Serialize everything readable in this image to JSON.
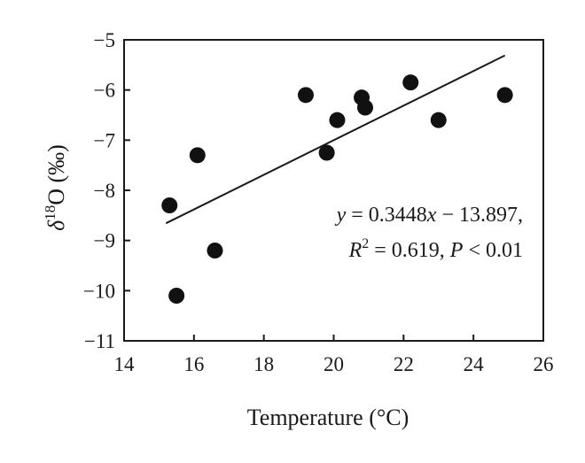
{
  "chart_data": {
    "type": "scatter",
    "xlabel": "Temperature (°C)",
    "ylabel_symbol": "δ",
    "ylabel_superscript": "18",
    "ylabel_rest": "O (‰)",
    "xlim": [
      14,
      26
    ],
    "ylim": [
      -11,
      -5
    ],
    "xticks": [
      14,
      16,
      18,
      20,
      22,
      24,
      26
    ],
    "yticks": [
      -5,
      -6,
      -7,
      -8,
      -9,
      -10,
      -11
    ],
    "xtick_labels": [
      "14",
      "16",
      "18",
      "20",
      "22",
      "24",
      "26"
    ],
    "ytick_labels": [
      "−5",
      "−6",
      "−7",
      "−8",
      "−9",
      "−10",
      "−11"
    ],
    "grid": false,
    "points": [
      {
        "x": 15.3,
        "y": -8.3
      },
      {
        "x": 15.5,
        "y": -10.1
      },
      {
        "x": 16.1,
        "y": -7.3
      },
      {
        "x": 16.6,
        "y": -9.2
      },
      {
        "x": 19.2,
        "y": -6.1
      },
      {
        "x": 19.8,
        "y": -7.25
      },
      {
        "x": 20.1,
        "y": -6.6
      },
      {
        "x": 20.8,
        "y": -6.15
      },
      {
        "x": 20.9,
        "y": -6.35
      },
      {
        "x": 22.2,
        "y": -5.85
      },
      {
        "x": 23.0,
        "y": -6.6
      },
      {
        "x": 24.9,
        "y": -6.1
      }
    ],
    "trendline": {
      "slope": 0.3448,
      "intercept": -13.897,
      "x_range": [
        15.2,
        24.9
      ]
    },
    "annotation": {
      "line1": {
        "y": "y",
        "eq": " = 0.3448",
        "x": "x",
        "rest": " − 13.897,"
      },
      "line2": {
        "R": "R",
        "sup": "2",
        "eq": " = 0.619, ",
        "P": "P",
        "rest": " < 0.01"
      }
    }
  }
}
